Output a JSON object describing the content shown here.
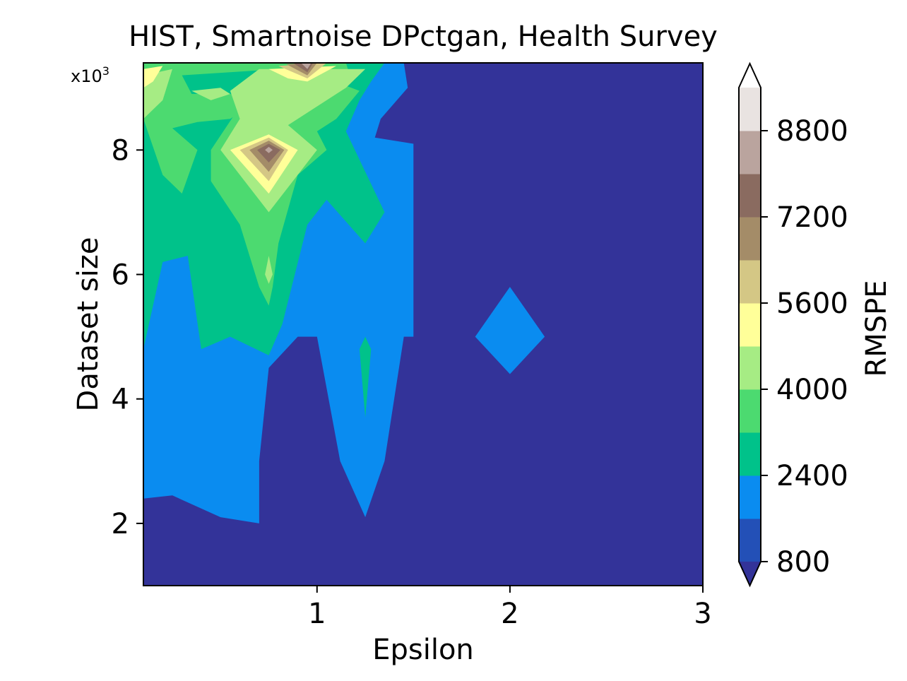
{
  "chart_data": {
    "type": "contour",
    "title": "HIST, Smartnoise DPctgan, Health Survey",
    "xlabel": "Epsilon",
    "ylabel": "Dataset size",
    "y_multiplier": "x10",
    "y_multiplier_exp": "3",
    "xlim": [
      0.1,
      3.0
    ],
    "ylim": [
      1.0,
      9.4
    ],
    "xticks": [
      1,
      2,
      3
    ],
    "xtick_labels": [
      "1",
      "2",
      "3"
    ],
    "yticks": [
      2,
      4,
      6,
      8
    ],
    "ytick_labels": [
      "2",
      "4",
      "6",
      "8"
    ],
    "colorbar": {
      "label": "RMSPE",
      "extend": "both",
      "tick_values": [
        800,
        2400,
        4000,
        5600,
        7200,
        8800
      ],
      "tick_labels": [
        "800",
        "2400",
        "4000",
        "5600",
        "7200",
        "8800"
      ],
      "levels": [
        800,
        1600,
        2400,
        3200,
        4000,
        4800,
        5600,
        6400,
        7200,
        8000,
        8800,
        9600
      ],
      "colors": [
        "#333399",
        "#2350b7",
        "#0a8cf0",
        "#00c28a",
        "#4cda70",
        "#a6ec84",
        "#ffff99",
        "#d4c785",
        "#a48c68",
        "#8a6b60",
        "#baa49e",
        "#e9e3e1",
        "#ffffff"
      ]
    },
    "regions": [
      {
        "min": 1600,
        "points": [
          [
            0.1,
            9.4
          ],
          [
            1.45,
            9.4
          ],
          [
            1.47,
            9.0
          ],
          [
            1.33,
            8.5
          ],
          [
            1.3,
            8.2
          ],
          [
            1.5,
            8.1
          ],
          [
            1.5,
            5.0
          ],
          [
            1.45,
            5.0
          ],
          [
            1.35,
            3.0
          ],
          [
            1.25,
            2.1
          ],
          [
            1.12,
            3.0
          ],
          [
            1.0,
            5.0
          ],
          [
            0.9,
            5.0
          ],
          [
            0.75,
            4.5
          ],
          [
            0.7,
            3.0
          ],
          [
            0.7,
            2.0
          ],
          [
            0.5,
            2.1
          ],
          [
            0.25,
            2.45
          ],
          [
            0.1,
            2.4
          ]
        ]
      },
      {
        "min": 1600,
        "points": [
          [
            1.82,
            5.0
          ],
          [
            2.0,
            5.8
          ],
          [
            2.18,
            5.0
          ],
          [
            2.0,
            4.4
          ]
        ]
      },
      {
        "min": 2400,
        "points": [
          [
            0.1,
            9.4
          ],
          [
            1.35,
            9.4
          ],
          [
            1.28,
            9.1
          ],
          [
            1.22,
            8.8
          ],
          [
            1.15,
            8.3
          ],
          [
            1.35,
            7.0
          ],
          [
            1.25,
            6.5
          ],
          [
            1.05,
            7.2
          ],
          [
            0.95,
            6.8
          ],
          [
            0.82,
            5.2
          ],
          [
            0.75,
            4.7
          ],
          [
            0.55,
            5.0
          ],
          [
            0.4,
            4.8
          ],
          [
            0.33,
            6.3
          ],
          [
            0.2,
            6.2
          ],
          [
            0.1,
            4.8
          ]
        ]
      },
      {
        "min": 2400,
        "points": [
          [
            1.22,
            4.8
          ],
          [
            1.25,
            5.0
          ],
          [
            1.28,
            4.8
          ],
          [
            1.25,
            3.7
          ]
        ]
      },
      {
        "min": 3200,
        "points": [
          [
            0.1,
            9.4
          ],
          [
            1.15,
            9.4
          ],
          [
            1.18,
            9.1
          ],
          [
            1.0,
            9.15
          ],
          [
            0.8,
            9.3
          ],
          [
            0.3,
            9.2
          ],
          [
            0.35,
            8.9
          ],
          [
            0.55,
            8.9
          ],
          [
            0.7,
            8.8
          ],
          [
            0.55,
            8.5
          ],
          [
            0.38,
            8.45
          ],
          [
            0.25,
            8.35
          ],
          [
            0.38,
            8.0
          ],
          [
            0.3,
            7.3
          ],
          [
            0.2,
            7.6
          ],
          [
            0.1,
            8.5
          ]
        ]
      },
      {
        "min": 3200,
        "points": [
          [
            0.9,
            9.2
          ],
          [
            1.05,
            9.15
          ],
          [
            1.22,
            8.95
          ],
          [
            1.1,
            8.5
          ],
          [
            1.0,
            8.3
          ],
          [
            1.05,
            8.0
          ],
          [
            0.9,
            7.6
          ],
          [
            0.8,
            6.5
          ],
          [
            0.77,
            5.8
          ],
          [
            0.75,
            5.5
          ],
          [
            0.7,
            5.8
          ],
          [
            0.6,
            6.8
          ],
          [
            0.45,
            7.5
          ],
          [
            0.45,
            8.0
          ],
          [
            0.6,
            8.7
          ]
        ]
      },
      {
        "min": 3200,
        "points": [
          [
            0.4,
            8.95
          ],
          [
            0.5,
            8.8
          ],
          [
            0.4,
            8.8
          ]
        ]
      },
      {
        "min": 4000,
        "points": [
          [
            0.1,
            9.2
          ],
          [
            0.25,
            9.3
          ],
          [
            0.2,
            8.8
          ],
          [
            0.1,
            8.5
          ]
        ]
      },
      {
        "min": 4000,
        "points": [
          [
            0.55,
            8.95
          ],
          [
            0.7,
            9.3
          ],
          [
            1.25,
            9.3
          ],
          [
            1.15,
            9.0
          ],
          [
            0.95,
            8.6
          ],
          [
            0.85,
            8.4
          ],
          [
            1.0,
            8.0
          ],
          [
            0.75,
            7.0
          ],
          [
            0.5,
            8.0
          ],
          [
            0.6,
            8.5
          ]
        ]
      },
      {
        "min": 4000,
        "points": [
          [
            0.35,
            8.95
          ],
          [
            0.5,
            9.0
          ],
          [
            0.55,
            8.9
          ],
          [
            0.45,
            8.8
          ]
        ]
      },
      {
        "min": 4000,
        "points": [
          [
            0.73,
            6.0
          ],
          [
            0.75,
            6.3
          ],
          [
            0.77,
            6.0
          ],
          [
            0.75,
            5.85
          ]
        ]
      },
      {
        "min": 4800,
        "points": [
          [
            0.1,
            9.3
          ],
          [
            0.2,
            9.35
          ],
          [
            0.15,
            9.1
          ],
          [
            0.1,
            9.0
          ]
        ]
      },
      {
        "min": 4800,
        "points": [
          [
            0.55,
            8.0
          ],
          [
            0.75,
            8.25
          ],
          [
            0.9,
            8.0
          ],
          [
            0.75,
            7.3
          ]
        ]
      },
      {
        "min": 4800,
        "points": [
          [
            0.75,
            9.3
          ],
          [
            1.1,
            9.35
          ],
          [
            0.95,
            9.1
          ],
          [
            0.85,
            9.15
          ]
        ]
      },
      {
        "min": 5600,
        "points": [
          [
            0.6,
            8.0
          ],
          [
            0.75,
            8.2
          ],
          [
            0.85,
            8.0
          ],
          [
            0.75,
            7.5
          ]
        ]
      },
      {
        "min": 5600,
        "points": [
          [
            0.8,
            9.35
          ],
          [
            1.05,
            9.4
          ],
          [
            0.95,
            9.15
          ]
        ]
      },
      {
        "min": 6400,
        "points": [
          [
            0.65,
            8.0
          ],
          [
            0.75,
            8.15
          ],
          [
            0.83,
            8.0
          ],
          [
            0.75,
            7.65
          ]
        ]
      },
      {
        "min": 6400,
        "points": [
          [
            0.84,
            9.38
          ],
          [
            1.0,
            9.4
          ],
          [
            0.95,
            9.2
          ]
        ]
      },
      {
        "min": 7200,
        "points": [
          [
            0.69,
            8.0
          ],
          [
            0.75,
            8.1
          ],
          [
            0.81,
            8.0
          ],
          [
            0.75,
            7.8
          ]
        ]
      },
      {
        "min": 7200,
        "points": [
          [
            0.88,
            9.39
          ],
          [
            0.98,
            9.4
          ],
          [
            0.95,
            9.25
          ]
        ]
      },
      {
        "min": 8000,
        "points": [
          [
            0.73,
            8.0
          ],
          [
            0.75,
            8.05
          ],
          [
            0.77,
            8.0
          ],
          [
            0.75,
            7.95
          ]
        ]
      },
      {
        "min": 8000,
        "points": [
          [
            0.92,
            9.39
          ],
          [
            0.97,
            9.4
          ],
          [
            0.95,
            9.3
          ]
        ]
      }
    ]
  }
}
